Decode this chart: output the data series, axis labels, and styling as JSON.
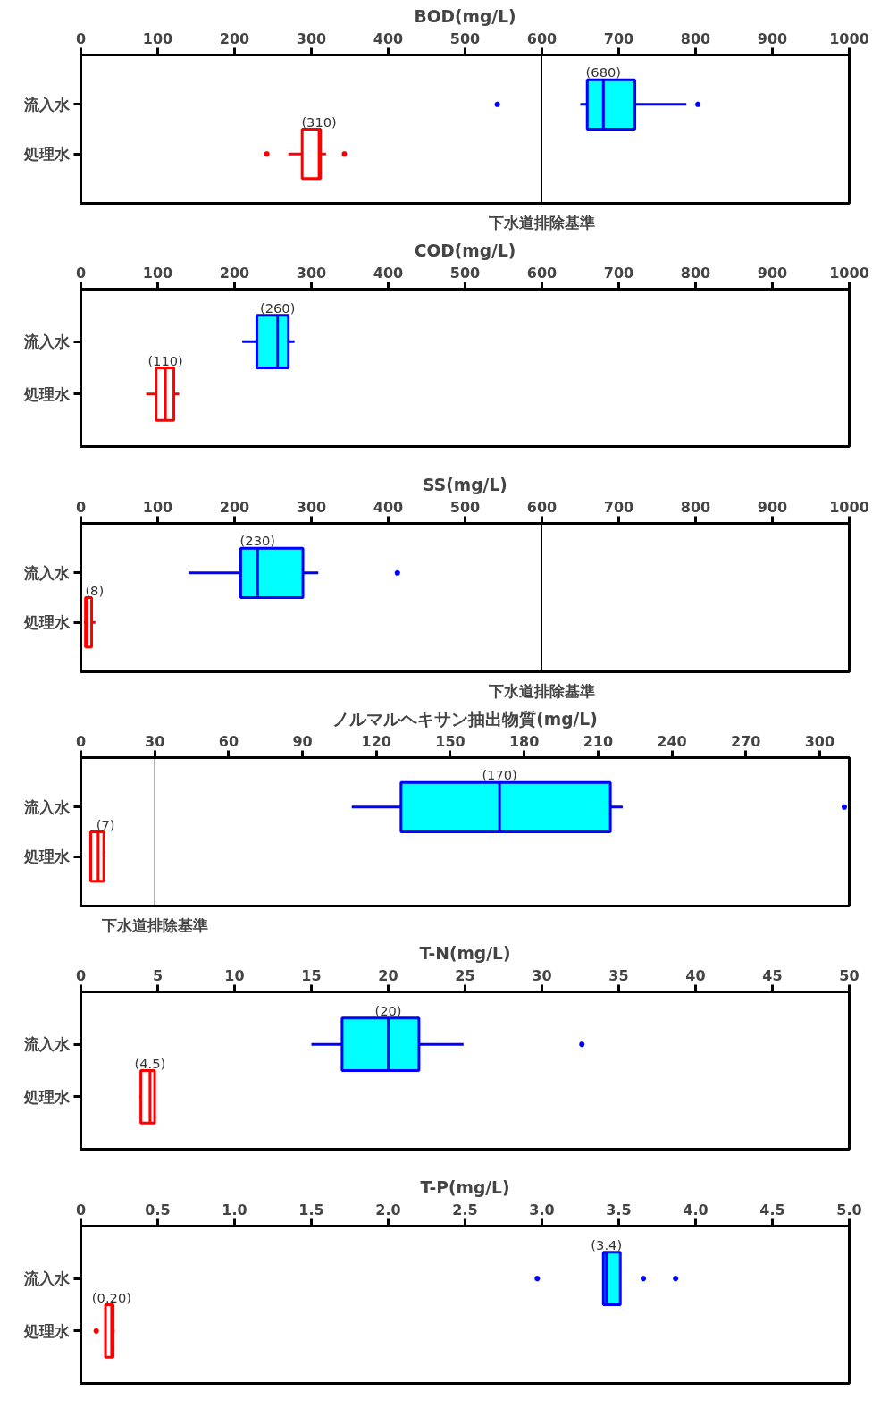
{
  "chart_data": [
    {
      "type": "box",
      "orientation": "horizontal",
      "title": "BOD(mg/L)",
      "categories": [
        "流入水",
        "処理水"
      ],
      "xlim": [
        0,
        1000
      ],
      "xticks": [
        0,
        100,
        200,
        300,
        400,
        500,
        600,
        700,
        800,
        900,
        1000
      ],
      "grid": false,
      "series": [
        {
          "colors": [
            "#0000ff",
            "#00ffff"
          ],
          "boxes": [
            {
              "low": 650,
              "q1": 659,
              "median": 680,
              "q3": 721,
              "high": 788,
              "outliers": [
                542,
                803
              ]
            },
            null
          ]
        },
        {
          "colors": [
            "#ff0000",
            "#ffffff"
          ],
          "boxes": [
            null,
            {
              "low": 270,
              "q1": 288,
              "median": 310,
              "q3": 312,
              "high": 319,
              "outliers": [
                242,
                343
              ]
            }
          ]
        }
      ],
      "annotations": [
        {
          "text": "(680)",
          "x": 680,
          "y": "流入水"
        },
        {
          "text": "(310)",
          "x": 310,
          "y": "処理水"
        }
      ],
      "ref_lines": [
        {
          "axis": "x",
          "value": 600,
          "label": "下水道排除基準",
          "color": "#000000"
        }
      ]
    },
    {
      "type": "box",
      "orientation": "horizontal",
      "title": "COD(mg/L)",
      "categories": [
        "流入水",
        "処理水"
      ],
      "xlim": [
        0,
        1000
      ],
      "xticks": [
        0,
        100,
        200,
        300,
        400,
        500,
        600,
        700,
        800,
        900,
        1000
      ],
      "grid": false,
      "series": [
        {
          "colors": [
            "#0000ff",
            "#00ffff"
          ],
          "boxes": [
            {
              "low": 210,
              "q1": 229,
              "median": 256,
              "q3": 270,
              "high": 278
            },
            null
          ]
        },
        {
          "colors": [
            "#ff0000",
            "#ffffff"
          ],
          "boxes": [
            null,
            {
              "low": 85,
              "q1": 98,
              "median": 110,
              "q3": 121,
              "high": 128
            }
          ]
        }
      ],
      "annotations": [
        {
          "text": "(260)",
          "x": 256,
          "y": "流入水"
        },
        {
          "text": "(110)",
          "x": 110,
          "y": "処理水"
        }
      ]
    },
    {
      "type": "box",
      "orientation": "horizontal",
      "title": "SS(mg/L)",
      "categories": [
        "流入水",
        "処理水"
      ],
      "xlim": [
        0,
        1000
      ],
      "xticks": [
        0,
        100,
        200,
        300,
        400,
        500,
        600,
        700,
        800,
        900,
        1000
      ],
      "grid": false,
      "series": [
        {
          "colors": [
            "#0000ff",
            "#00ffff"
          ],
          "boxes": [
            {
              "low": 140,
              "q1": 208,
              "median": 230,
              "q3": 289,
              "high": 309,
              "outliers": [
                412
              ]
            },
            null
          ]
        },
        {
          "colors": [
            "#ff0000",
            "#ffffff"
          ],
          "boxes": [
            null,
            {
              "low": 4,
              "q1": 6,
              "median": 8,
              "q3": 14,
              "high": 19
            }
          ]
        }
      ],
      "annotations": [
        {
          "text": "(230)",
          "x": 230,
          "y": "流入水"
        },
        {
          "text": "(8)",
          "x": 8,
          "y": "処理水"
        }
      ],
      "ref_lines": [
        {
          "axis": "x",
          "value": 600,
          "label": "下水道排除基準",
          "color": "#000000"
        }
      ]
    },
    {
      "type": "box",
      "orientation": "horizontal",
      "title": "ノルマルヘキサン抽出物質(mg/L)",
      "categories": [
        "流入水",
        "処理水"
      ],
      "xlim": [
        0,
        312
      ],
      "xticks": [
        0,
        30,
        60,
        90,
        120,
        150,
        180,
        210,
        240,
        270,
        300
      ],
      "grid": false,
      "series": [
        {
          "colors": [
            "#0000ff",
            "#00ffff"
          ],
          "boxes": [
            {
              "low": 110,
              "q1": 130,
              "median": 170,
              "q3": 215,
              "high": 220,
              "outliers": [
                310
              ]
            },
            null
          ]
        },
        {
          "colors": [
            "#ff0000",
            "#ffffff"
          ],
          "boxes": [
            null,
            {
              "low": 4,
              "q1": 4,
              "median": 7,
              "q3": 9.3,
              "high": 10
            }
          ]
        }
      ],
      "annotations": [
        {
          "text": "(170)",
          "x": 170,
          "y": "流入水"
        },
        {
          "text": "(7)",
          "x": 7,
          "y": "処理水"
        }
      ],
      "ref_lines": [
        {
          "axis": "x",
          "value": 30,
          "label": "下水道排除基準",
          "color": "#000000"
        }
      ]
    },
    {
      "type": "box",
      "orientation": "horizontal",
      "title": "T-N(mg/L)",
      "categories": [
        "流入水",
        "処理水"
      ],
      "xlim": [
        0,
        50
      ],
      "xticks": [
        0,
        5,
        10,
        15,
        20,
        25,
        30,
        35,
        40,
        45,
        50
      ],
      "grid": false,
      "series": [
        {
          "colors": [
            "#0000ff",
            "#00ffff"
          ],
          "boxes": [
            {
              "low": 15,
              "q1": 17,
              "median": 20,
              "q3": 22,
              "high": 24.9,
              "outliers": [
                32.6
              ]
            },
            null
          ]
        },
        {
          "colors": [
            "#ff0000",
            "#ffffff"
          ],
          "boxes": [
            null,
            {
              "low": 3.8,
              "q1": 3.9,
              "median": 4.5,
              "q3": 4.8,
              "high": 4.8
            }
          ]
        }
      ],
      "annotations": [
        {
          "text": "(20)",
          "x": 20,
          "y": "流入水"
        },
        {
          "text": "(4.5)",
          "x": 4.5,
          "y": "処理水"
        }
      ]
    },
    {
      "type": "box",
      "orientation": "horizontal",
      "title": "T-P(mg/L)",
      "categories": [
        "流入水",
        "処理水"
      ],
      "xlim": [
        0,
        5
      ],
      "xticks": [
        0,
        {
          "value": 0.5,
          "label": "0.5"
        },
        {
          "value": 1,
          "label": "1.0"
        },
        {
          "value": 1.5,
          "label": "1.5"
        },
        {
          "value": 2,
          "label": "2.0"
        },
        {
          "value": 2.5,
          "label": "2.5"
        },
        {
          "value": 3,
          "label": "3.0"
        },
        {
          "value": 3.5,
          "label": "3.5"
        },
        {
          "value": 4,
          "label": "4.0"
        },
        {
          "value": 4.5,
          "label": "4.5"
        },
        {
          "value": 5,
          "label": "5.0"
        }
      ],
      "grid": false,
      "series": [
        {
          "colors": [
            "#0000ff",
            "#00ffff"
          ],
          "boxes": [
            {
              "low": 3.4,
              "q1": 3.4,
              "median": 3.42,
              "q3": 3.51,
              "high": 3.51,
              "outliers": [
                2.97,
                3.66,
                3.87
              ]
            },
            null
          ]
        },
        {
          "colors": [
            "#ff0000",
            "#ffffff"
          ],
          "boxes": [
            null,
            {
              "low": 0.16,
              "q1": 0.16,
              "median": 0.2,
              "q3": 0.21,
              "high": 0.22,
              "outliers": [
                0.1
              ]
            }
          ]
        }
      ],
      "annotations": [
        {
          "text": "(3.4)",
          "x": 3.42,
          "y": "流入水"
        },
        {
          "text": "(0.20)",
          "x": 0.2,
          "y": "処理水"
        }
      ]
    }
  ]
}
